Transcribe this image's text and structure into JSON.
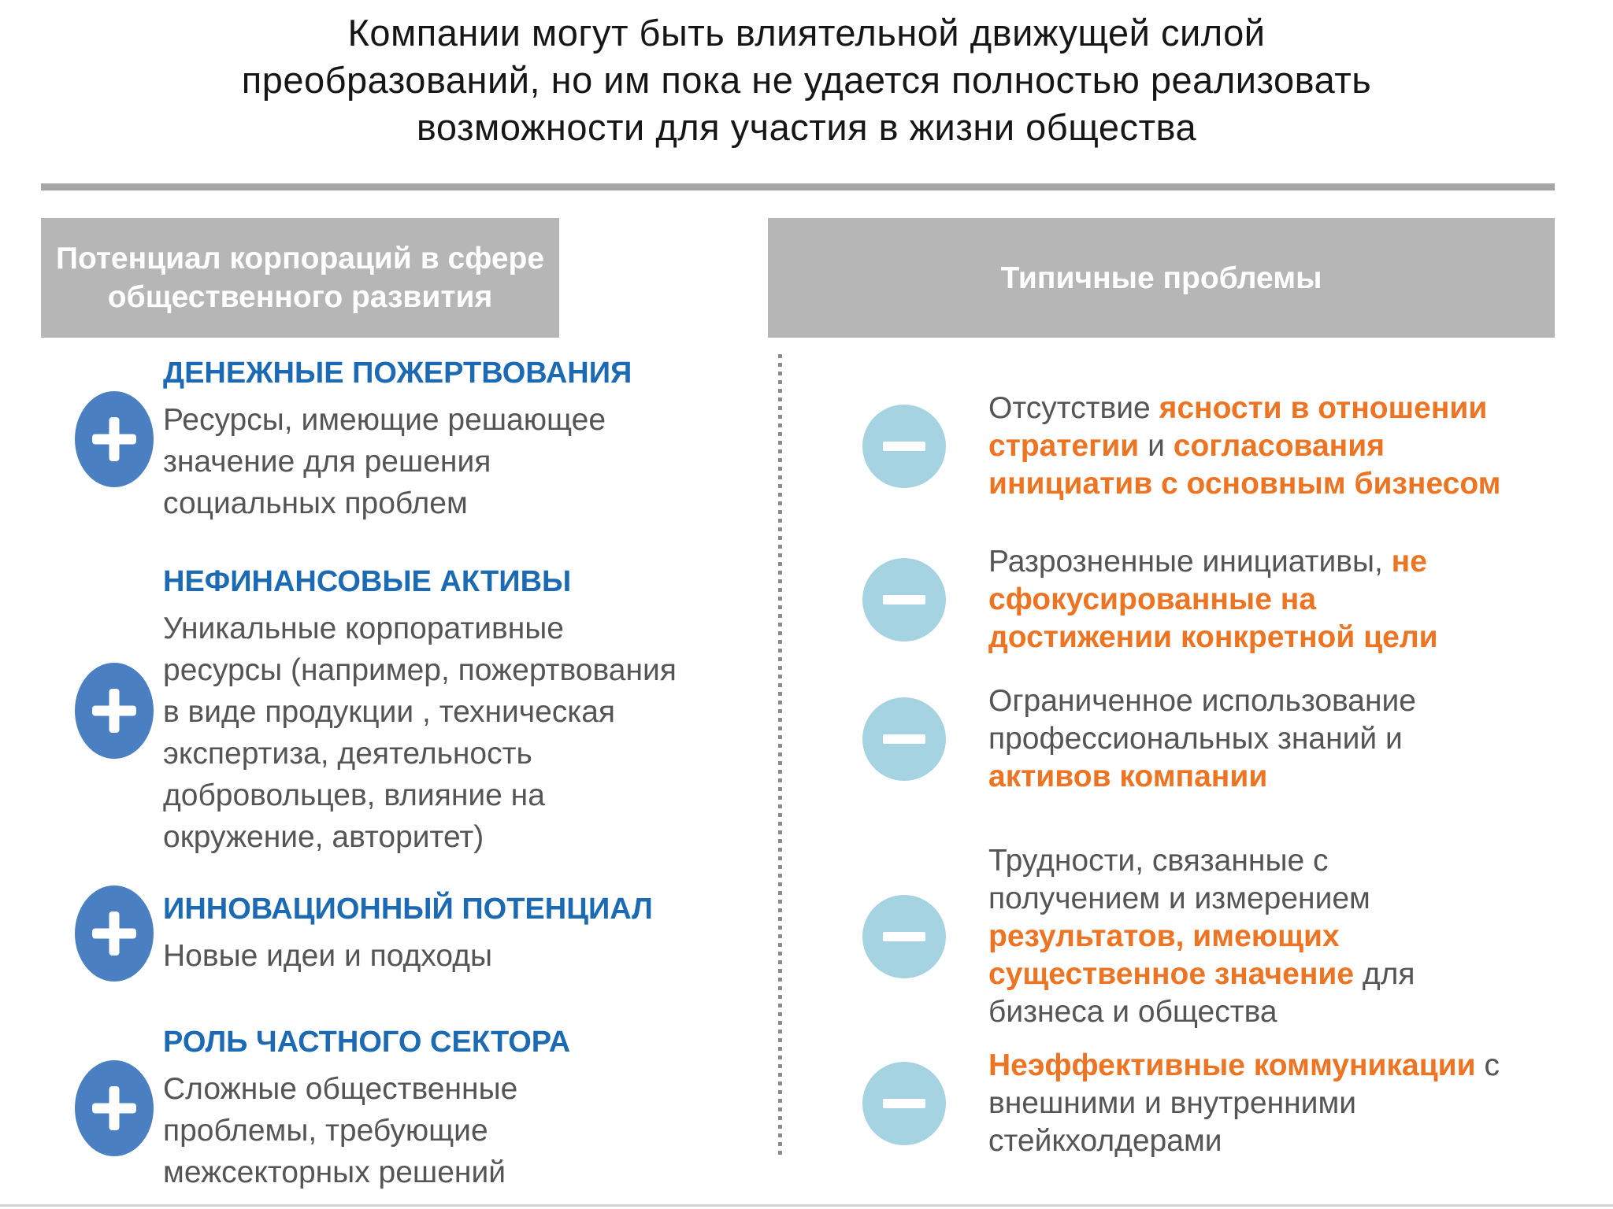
{
  "colors": {
    "heading_blue": "#1c6ab3",
    "highlight_orange": "#ec7423",
    "plus_circle_blue": "#4a7fc1",
    "minus_circle_blue": "#a6d3e2",
    "header_bar_gray": "#b6b6b6",
    "body_text_gray": "#555555"
  },
  "title": {
    "text": "Компании могут быть влиятельной движущей силой\nпреобразований, но им пока не удается полностью реализовать\nвозможности для участия в жизни общества"
  },
  "left": {
    "header": "Потенциал  корпораций в сфере\nобщественного развития",
    "icon": "plus-in-blue-circle",
    "items": [
      {
        "heading": "ДЕНЕЖНЫЕ ПОЖЕРТВОВАНИЯ",
        "body": "Ресурсы, имеющие решающее\nзначение для решения\nсоциальных проблем"
      },
      {
        "heading": "НЕФИНАНСОВЫЕ АКТИВЫ",
        "body": "Уникальные корпоративные\nресурсы (например, пожертвования\nв виде продукции , техническая\nэкспертиза,  деятельность\nдобровольцев, влияние на\nокружение,  авторитет)"
      },
      {
        "heading": "ИННОВАЦИОННЫЙ ПОТЕНЦИАЛ",
        "body": "Новые идеи и подходы"
      },
      {
        "heading": "РОЛЬ ЧАСТНОГО СЕКТОРА",
        "body": "Сложные общественные\nпроблемы, требующие\nмежсекторных  решений"
      }
    ]
  },
  "right": {
    "header": "Типичные проблемы",
    "icon": "minus-in-lightblue-circle",
    "items": [
      {
        "segments": [
          {
            "text": "Отсутствие ",
            "highlight": false
          },
          {
            "text": "ясности в отношении\nстратегии ",
            "highlight": true
          },
          {
            "text": "и ",
            "highlight": false
          },
          {
            "text": "согласования\nинициатив с основным бизнесом",
            "highlight": true
          }
        ]
      },
      {
        "segments": [
          {
            "text": "Разрозненные инициативы, ",
            "highlight": false
          },
          {
            "text": "не\nсфокусированные на\nдостижении конкретной цели",
            "highlight": true
          }
        ]
      },
      {
        "segments": [
          {
            "text": "Ограниченное использование\nпрофессиональных знаний и\n",
            "highlight": false
          },
          {
            "text": "активов компании",
            "highlight": true
          }
        ]
      },
      {
        "segments": [
          {
            "text": "Трудности, связанные с\nполучением и измерением\n",
            "highlight": false
          },
          {
            "text": "результатов, имеющих\nсущественное значение ",
            "highlight": true
          },
          {
            "text": "для\nбизнеса и общества",
            "highlight": false
          }
        ]
      },
      {
        "segments": [
          {
            "text": "Неэффективные коммуникации ",
            "highlight": true
          },
          {
            "text": "с\nвнешними и внутренними\nстейкхолдерами",
            "highlight": false
          }
        ]
      }
    ]
  }
}
